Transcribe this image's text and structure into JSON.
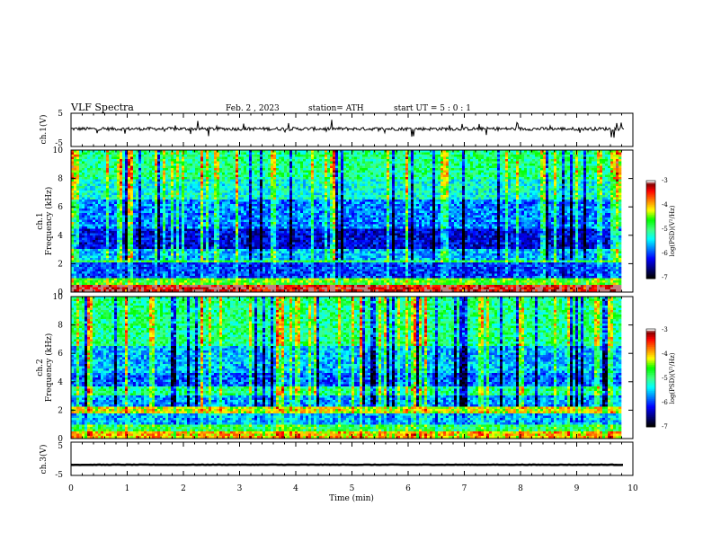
{
  "header": {
    "title": "VLF  Spectra",
    "date": "Feb. 2  , 2023",
    "station": "station= ATH",
    "start": "start  UT  =    5 : 0  : 1"
  },
  "colors": {
    "spectrogram_scale": [
      "#000000",
      "#000080",
      "#0000ff",
      "#0080ff",
      "#00ffff",
      "#40ff80",
      "#00ff00",
      "#ffff00",
      "#ff8000",
      "#ff0000",
      "#800000",
      "#ffffff"
    ]
  },
  "chart_data": [
    {
      "type": "line",
      "panel": "ch1-waveform",
      "ylabel": "ch.1(V)",
      "ylim": [
        -5,
        5
      ],
      "yticks": [
        "5",
        "-5"
      ],
      "xlim": [
        0,
        10
      ],
      "series": [
        {
          "values_description_level": 0.0,
          "baseline": 0.3,
          "noise_amplitude": 0.5,
          "burst_amplitude": 2.5
        }
      ]
    },
    {
      "type": "heatmap",
      "panel": "ch1-spectrogram",
      "ylabel": "ch.1",
      "ylabel2": "Frequency  (kHz)",
      "ylim": [
        0,
        10
      ],
      "yticks": [
        "0",
        "2",
        "4",
        "6",
        "8",
        "10"
      ],
      "xlim": [
        0,
        9.8
      ],
      "zlim": [
        -7,
        -3
      ],
      "colorbar": {
        "label": "log(PSD)(V²/Hz)",
        "ticks": [
          "-3",
          "-4",
          "-5",
          "-6",
          "-7"
        ]
      },
      "bands": [
        {
          "from": 0.0,
          "to": 0.5,
          "level": -3.2
        },
        {
          "from": 0.5,
          "to": 1.0,
          "level": -4.6
        },
        {
          "from": 1.0,
          "to": 2.0,
          "level": -6.0
        },
        {
          "from": 2.0,
          "to": 2.2,
          "level": -4.8
        },
        {
          "from": 2.2,
          "to": 3.0,
          "level": -5.6
        },
        {
          "from": 3.0,
          "to": 4.5,
          "level": -6.3
        },
        {
          "from": 4.5,
          "to": 6.5,
          "level": -5.8
        },
        {
          "from": 6.5,
          "to": 8.0,
          "level": -5.3
        },
        {
          "from": 8.0,
          "to": 10.0,
          "level": -5.0
        }
      ]
    },
    {
      "type": "heatmap",
      "panel": "ch2-spectrogram",
      "ylabel": "ch.2",
      "ylabel2": "Frequency  (kHz)",
      "ylim": [
        0,
        10
      ],
      "yticks": [
        "0",
        "2",
        "4",
        "6",
        "8",
        "10"
      ],
      "xlim": [
        0,
        9.8
      ],
      "zlim": [
        -7,
        -3
      ],
      "colorbar": {
        "label": "log(PSD)(V²/Hz)",
        "ticks": [
          "-3",
          "-4",
          "-5",
          "-6",
          "-7"
        ]
      },
      "bands": [
        {
          "from": 0.0,
          "to": 0.5,
          "level": -4.0
        },
        {
          "from": 0.5,
          "to": 1.0,
          "level": -4.8
        },
        {
          "from": 1.0,
          "to": 1.8,
          "level": -5.6
        },
        {
          "from": 1.8,
          "to": 2.2,
          "level": -4.2
        },
        {
          "from": 2.2,
          "to": 3.0,
          "level": -5.7
        },
        {
          "from": 3.0,
          "to": 3.6,
          "level": -5.0
        },
        {
          "from": 3.6,
          "to": 4.6,
          "level": -5.9
        },
        {
          "from": 4.6,
          "to": 6.5,
          "level": -5.6
        },
        {
          "from": 6.5,
          "to": 10.0,
          "level": -5.0
        }
      ]
    },
    {
      "type": "line",
      "panel": "ch3-waveform",
      "ylabel": "ch.3(V)",
      "ylim": [
        -5,
        5
      ],
      "yticks": [
        "5",
        "-5"
      ],
      "xlim": [
        0,
        10
      ],
      "xlabel": "Time  (min)",
      "xticks": [
        "0",
        "1",
        "2",
        "3",
        "4",
        "5",
        "6",
        "7",
        "8",
        "9",
        "10"
      ],
      "series": [
        {
          "level": -1.8,
          "noise_amplitude": 0.15
        }
      ]
    }
  ]
}
